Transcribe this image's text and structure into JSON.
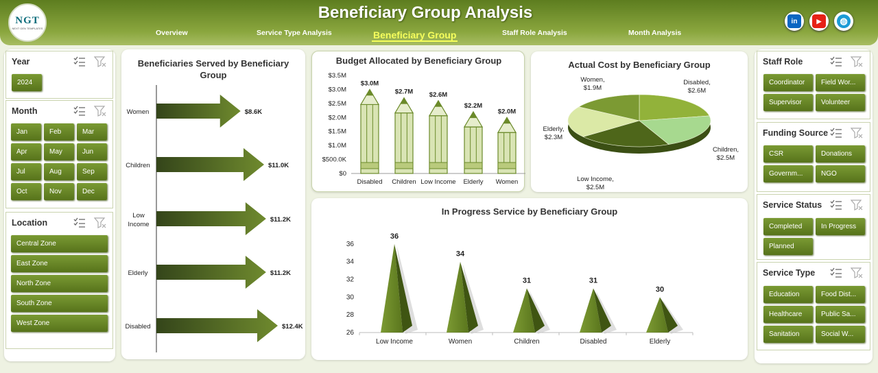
{
  "header": {
    "title": "Beneficiary Group Analysis",
    "logo_text": "NGT",
    "logo_sub": "NEXT GEN TEMPLATES",
    "nav": [
      "Overview",
      "Service Type Analysis",
      "Beneficiary Group",
      "Staff Role Analysis",
      "Month Analysis"
    ],
    "social": [
      "in",
      "▶",
      "◍"
    ]
  },
  "slicers": {
    "year": {
      "title": "Year",
      "items": [
        "2024"
      ]
    },
    "month": {
      "title": "Month",
      "items": [
        "Jan",
        "Feb",
        "Mar",
        "Apr",
        "May",
        "Jun",
        "Jul",
        "Aug",
        "Sep",
        "Oct",
        "Nov",
        "Dec"
      ]
    },
    "location": {
      "title": "Location",
      "items": [
        "Central Zone",
        "East Zone",
        "North Zone",
        "South Zone",
        "West Zone"
      ]
    },
    "staff_role": {
      "title": "Staff Role",
      "items": [
        "Coordinator",
        "Field Wor...",
        "Supervisor",
        "Volunteer"
      ]
    },
    "funding_source": {
      "title": "Funding Source",
      "items": [
        "CSR",
        "Donations",
        "Governm...",
        "NGO"
      ]
    },
    "service_status": {
      "title": "Service Status",
      "items": [
        "Completed",
        "In Progress",
        "Planned"
      ]
    },
    "service_type": {
      "title": "Service Type",
      "items": [
        "Education",
        "Food Dist...",
        "Healthcare",
        "Public Sa...",
        "Sanitation",
        "Social W..."
      ]
    }
  },
  "colors": {
    "accent": "#5a761d",
    "light": "#c8d89a"
  },
  "chart_data": [
    {
      "type": "bar",
      "orientation": "horizontal",
      "title": "Beneficiaries Served by Beneficiary Group",
      "categories": [
        "Women",
        "Children",
        "Low Income",
        "Elderly",
        "Disabled"
      ],
      "values": [
        8.6,
        11.0,
        11.2,
        11.2,
        12.4
      ],
      "labels": [
        "$8.6K",
        "$11.0K",
        "$11.2K",
        "$11.2K",
        "$12.4K"
      ]
    },
    {
      "type": "bar",
      "title": "Budget Allocated by Beneficiary Group",
      "categories": [
        "Disabled",
        "Children",
        "Low Income",
        "Elderly",
        "Women"
      ],
      "values": [
        3.0,
        2.7,
        2.6,
        2.2,
        2.0
      ],
      "labels": [
        "$3.0M",
        "$2.7M",
        "$2.6M",
        "$2.2M",
        "$2.0M"
      ],
      "yticks": [
        "$0",
        "$500.0K",
        "$1.0M",
        "$1.5M",
        "$2.0M",
        "$2.5M",
        "$3.0M",
        "$3.5M"
      ],
      "ylim": [
        0,
        3.5
      ]
    },
    {
      "type": "pie",
      "title": "Actual Cost by Beneficiary Group",
      "categories": [
        "Disabled",
        "Children",
        "Low Income",
        "Elderly",
        "Women"
      ],
      "values": [
        2.6,
        2.5,
        2.5,
        2.3,
        1.9
      ],
      "labels": [
        "Disabled,\n$2.6M",
        "Children,\n$2.5M",
        "Low Income,\n$2.5M",
        "Elderly,\n$2.3M",
        "Women,\n$1.9M"
      ]
    },
    {
      "type": "bar",
      "title": "In Progress Service by Beneficiary Group",
      "categories": [
        "Low Income",
        "Women",
        "Children",
        "Disabled",
        "Elderly"
      ],
      "values": [
        36,
        34,
        31,
        31,
        30
      ],
      "yticks": [
        "26",
        "28",
        "30",
        "32",
        "34",
        "36"
      ],
      "ylim": [
        26,
        37
      ]
    }
  ]
}
